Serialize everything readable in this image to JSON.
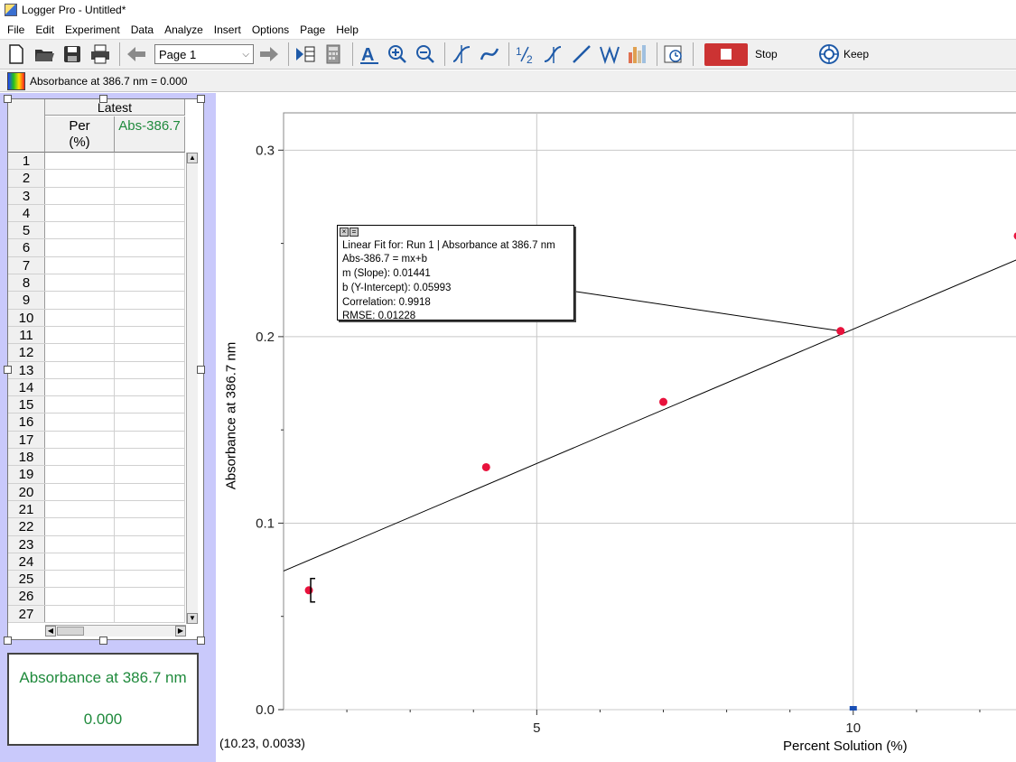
{
  "window": {
    "title": "Logger Pro - Untitled*"
  },
  "menu": [
    "File",
    "Edit",
    "Experiment",
    "Data",
    "Analyze",
    "Insert",
    "Options",
    "Page",
    "Help"
  ],
  "toolbar": {
    "page_select": "Page 1",
    "stop_label": "Stop",
    "keep_label": "Keep",
    "icons": [
      "new-file-icon",
      "open-folder-icon",
      "save-icon",
      "print-icon",
      "back-arrow-icon",
      "forward-arrow-icon",
      "data-browser-icon",
      "calculator-icon",
      "autoscale-icon",
      "zoom-in-icon",
      "zoom-out-icon",
      "examine-icon",
      "tangent-icon",
      "integral-icon",
      "stats-icon",
      "linear-fit-icon",
      "curve-fit-icon",
      "fft-icon",
      "histogram-icon",
      "timer-icon"
    ]
  },
  "meter_bar": {
    "text": "Absorbance at 386.7 nm = 0.000"
  },
  "table": {
    "group_header": "Latest",
    "col1": "Per\n(%)",
    "col1_line1": "Per",
    "col1_line2": "(%)",
    "col2": "Abs-386.7",
    "row_numbers": [
      "1",
      "2",
      "3",
      "4",
      "5",
      "6",
      "7",
      "8",
      "9",
      "10",
      "11",
      "12",
      "13",
      "14",
      "15",
      "16",
      "17",
      "18",
      "19",
      "20",
      "21",
      "22",
      "23",
      "24",
      "25",
      "26",
      "27"
    ]
  },
  "meter_box": {
    "label": "Absorbance at 386.7 nm",
    "value": "0.000"
  },
  "graph": {
    "xlabel": "Percent Solution (%)",
    "ylabel": "Absorbance at 386.7 nm",
    "cursor_readout": "(10.23, 0.0033)",
    "fit_box": {
      "title": "Linear Fit for: Run 1 | Absorbance at 386.7 nm",
      "equation": "Abs-386.7 = mx+b",
      "slope": "m (Slope): 0.01441",
      "intercept": "b (Y-Intercept): 0.05993",
      "correlation": "Correlation: 0.9918",
      "rmse": "RMSE: 0.01228"
    }
  },
  "chart_data": {
    "type": "scatter",
    "xlabel": "Percent Solution (%)",
    "ylabel": "Absorbance at 386.7 nm",
    "xlim": [
      1.0,
      12.6
    ],
    "ylim": [
      0.0,
      0.32
    ],
    "x_ticks": [
      "5",
      "10"
    ],
    "y_ticks": [
      "0.0",
      "0.1",
      "0.2",
      "0.3"
    ],
    "grid": true,
    "series": [
      {
        "x": [
          1.4,
          4.2,
          7.0,
          9.8,
          12.6
        ],
        "y": [
          0.064,
          0.13,
          0.165,
          0.203,
          0.254
        ]
      }
    ],
    "fit": {
      "slope": 0.01441,
      "intercept": 0.05993
    },
    "selected_point": {
      "x": 10.0,
      "y": 0.0
    },
    "colors": {
      "point": "#e8123c",
      "fit_line": "#000000",
      "selected": "#1a4fb5"
    }
  }
}
